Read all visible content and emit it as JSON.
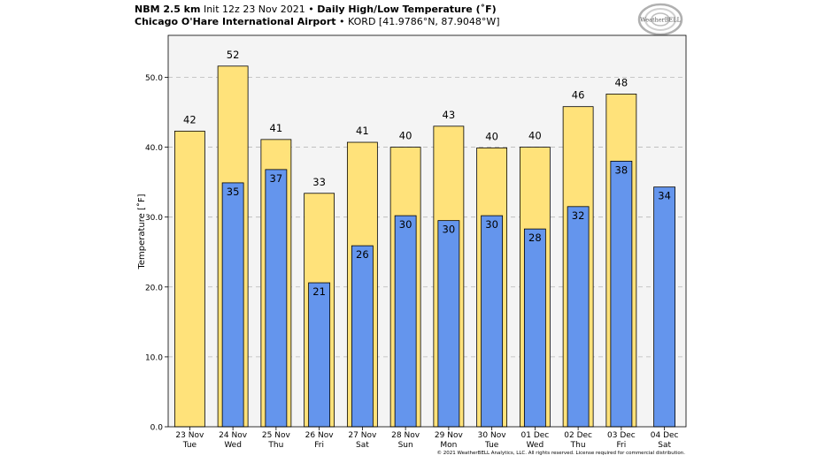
{
  "header": {
    "model": "NBM 2.5 km",
    "init": "Init 12z 23 Nov 2021",
    "bullet1": "•",
    "product": "Daily High/Low Temperature (˚F)",
    "station": "Chicago O'Hare International Airport",
    "bullet2": "•",
    "location": "KORD [41.9786°N, 87.9048°W]"
  },
  "logo": {
    "text": "WeatherBELL",
    "icon": "weatherbell-swirl-logo"
  },
  "copyright": "© 2021 WeatherBELL Analytics, LLC. All rights reserved. License required for commercial distribution.",
  "chart_data": {
    "type": "bar",
    "ylabel": "Temperature [˚F]",
    "ylim": [
      0,
      56
    ],
    "yticks": [
      "0.0",
      "10.0",
      "20.0",
      "30.0",
      "40.0",
      "50.0"
    ],
    "grid": true,
    "categories": [
      {
        "date": "23 Nov",
        "day": "Tue"
      },
      {
        "date": "24 Nov",
        "day": "Wed"
      },
      {
        "date": "25 Nov",
        "day": "Thu"
      },
      {
        "date": "26 Nov",
        "day": "Fri"
      },
      {
        "date": "27 Nov",
        "day": "Sat"
      },
      {
        "date": "28 Nov",
        "day": "Sun"
      },
      {
        "date": "29 Nov",
        "day": "Mon"
      },
      {
        "date": "30 Nov",
        "day": "Tue"
      },
      {
        "date": "01 Dec",
        "day": "Wed"
      },
      {
        "date": "02 Dec",
        "day": "Thu"
      },
      {
        "date": "03 Dec",
        "day": "Fri"
      },
      {
        "date": "04 Dec",
        "day": "Sat"
      }
    ],
    "series": [
      {
        "values": [
          42.3,
          51.6,
          41.1,
          33.4,
          40.7,
          40.0,
          43.0,
          39.9,
          40.0,
          45.8,
          47.6,
          null
        ],
        "labels": [
          "42",
          "52",
          "41",
          "33",
          "41",
          "40",
          "43",
          "40",
          "40",
          "46",
          "48",
          ""
        ],
        "color": "#ffe27a"
      },
      {
        "values": [
          null,
          34.9,
          36.8,
          20.6,
          25.9,
          30.2,
          29.5,
          30.2,
          28.3,
          31.5,
          38.0,
          34.3
        ],
        "labels": [
          "",
          "35",
          "37",
          "21",
          "26",
          "30",
          "30",
          "30",
          "28",
          "32",
          "38",
          "34"
        ],
        "color": "#6495ed"
      }
    ]
  }
}
